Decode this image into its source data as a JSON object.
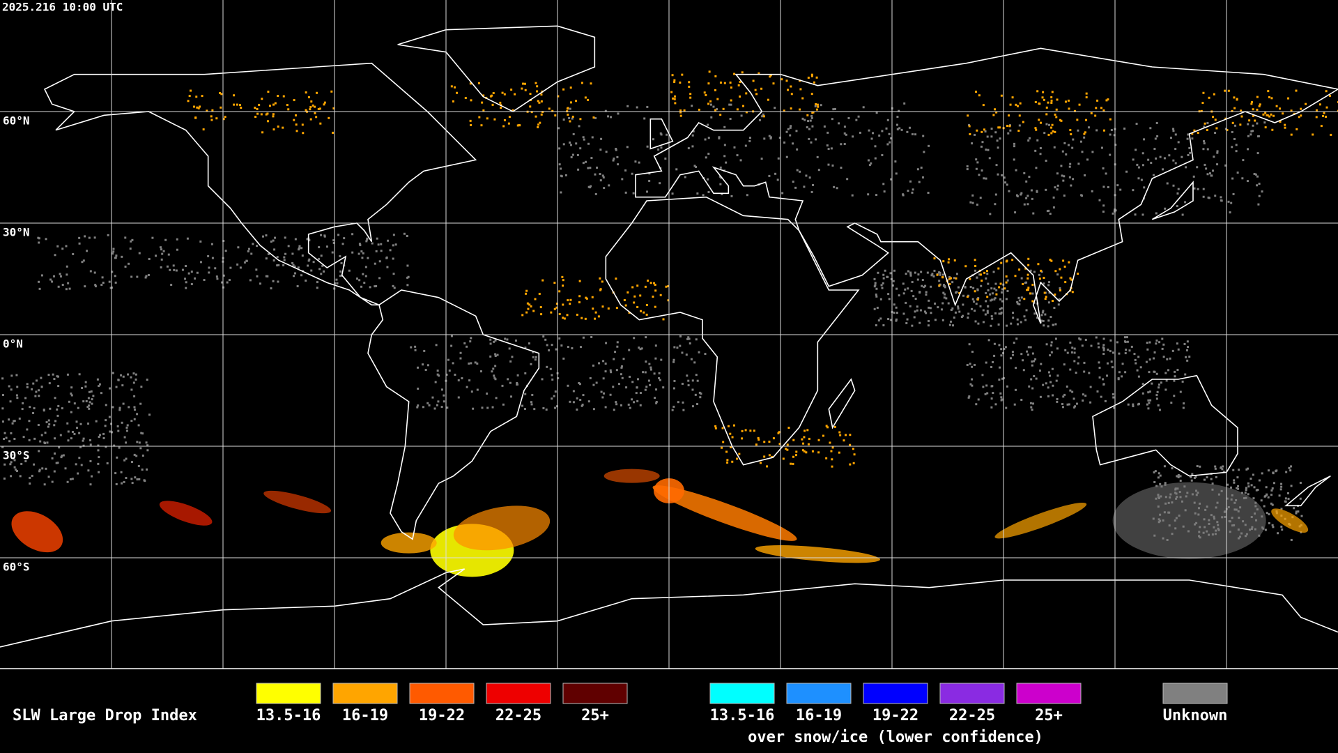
{
  "header": {
    "timestamp": "2025.216 10:00 UTC"
  },
  "grid": {
    "lat_labels": [
      "60°N",
      "30°N",
      "0°N",
      "30°S",
      "60°S"
    ]
  },
  "legend": {
    "title": "SLW Large Drop Index",
    "groups": [
      {
        "items": [
          {
            "label": "13.5-16",
            "color": "#ffff00"
          },
          {
            "label": "16-19",
            "color": "#ffa500"
          },
          {
            "label": "19-22",
            "color": "#ff5a00"
          },
          {
            "label": "22-25",
            "color": "#ee0000"
          },
          {
            "label": "25+",
            "color": "#600000"
          }
        ]
      },
      {
        "items": [
          {
            "label": "13.5-16",
            "color": "#00ffff"
          },
          {
            "label": "16-19",
            "color": "#1e90ff"
          },
          {
            "label": "19-22",
            "color": "#0000ff"
          },
          {
            "label": "22-25",
            "color": "#8a2be2"
          },
          {
            "label": "25+",
            "color": "#cc00cc"
          }
        ],
        "caption": "over snow/ice (lower confidence)"
      },
      {
        "items": [
          {
            "label": "Unknown",
            "color": "#808080"
          }
        ]
      }
    ]
  }
}
